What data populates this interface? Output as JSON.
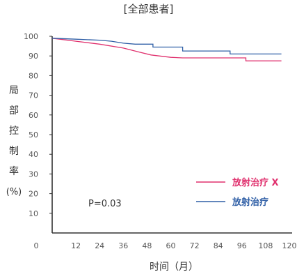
{
  "chart_data": {
    "type": "line",
    "title": "[全部患者]",
    "ylabel_chars": [
      "局",
      "部",
      "控",
      "制",
      "率"
    ],
    "ylabel_unit": "(%)",
    "xlabel": "时间（月）",
    "x_ticks": [
      0,
      12,
      24,
      36,
      48,
      60,
      72,
      84,
      96,
      108,
      120
    ],
    "y_ticks": [
      10,
      20,
      30,
      40,
      50,
      60,
      70,
      80,
      90,
      100
    ],
    "xlim": [
      0,
      120
    ],
    "ylim": [
      0,
      100
    ],
    "annotation": "P=0.03",
    "legend_position": "right",
    "series": [
      {
        "name": "放射治疗 X",
        "color": "#e0316e",
        "step": false,
        "points": [
          [
            0,
            99
          ],
          [
            12,
            97.5
          ],
          [
            24,
            96
          ],
          [
            36,
            94
          ],
          [
            44,
            92
          ],
          [
            50,
            90.5
          ],
          [
            60,
            89.3
          ],
          [
            66,
            89
          ],
          [
            98,
            89
          ],
          [
            98,
            87.5
          ],
          [
            116,
            87.5
          ]
        ]
      },
      {
        "name": "放射治疗",
        "color": "#2f5fa6",
        "step": true,
        "points": [
          [
            0,
            99
          ],
          [
            12,
            98.5
          ],
          [
            24,
            98
          ],
          [
            30,
            97.5
          ],
          [
            36,
            96.5
          ],
          [
            42,
            96
          ],
          [
            51,
            96
          ],
          [
            51,
            94.5
          ],
          [
            66,
            94.5
          ],
          [
            66,
            92.5
          ],
          [
            90,
            92.5
          ],
          [
            90,
            91
          ],
          [
            116,
            91
          ]
        ]
      }
    ]
  }
}
